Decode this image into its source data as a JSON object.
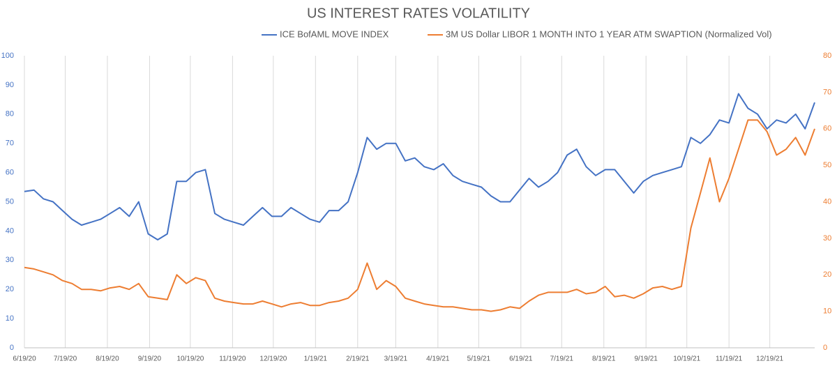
{
  "chart_data": {
    "type": "line",
    "title": "US INTEREST RATES VOLATILITY",
    "x": [
      "6/19/20",
      "6/26/20",
      "7/3/20",
      "7/10/20",
      "7/17/20",
      "7/24/20",
      "7/31/20",
      "8/7/20",
      "8/14/20",
      "8/21/20",
      "8/28/20",
      "9/4/20",
      "9/11/20",
      "9/18/20",
      "9/25/20",
      "10/2/20",
      "10/9/20",
      "10/16/20",
      "10/23/20",
      "10/30/20",
      "11/6/20",
      "11/13/20",
      "11/20/20",
      "11/27/20",
      "12/4/20",
      "12/11/20",
      "12/18/20",
      "12/25/20",
      "1/1/21",
      "1/8/21",
      "1/15/21",
      "1/22/21",
      "1/29/21",
      "2/5/21",
      "2/12/21",
      "2/19/21",
      "2/26/21",
      "3/5/21",
      "3/12/21",
      "3/19/21",
      "3/26/21",
      "4/2/21",
      "4/9/21",
      "4/16/21",
      "4/23/21",
      "4/30/21",
      "5/7/21",
      "5/14/21",
      "5/21/21",
      "5/28/21",
      "6/4/21",
      "6/11/21",
      "6/18/21",
      "6/25/21",
      "7/2/21",
      "7/9/21",
      "7/16/21",
      "7/23/21",
      "7/30/21",
      "8/6/21",
      "8/13/21",
      "8/20/21",
      "8/27/21",
      "9/3/21",
      "9/10/21",
      "9/17/21",
      "9/24/21",
      "10/1/21",
      "10/8/21",
      "10/15/21",
      "10/22/21",
      "10/29/21",
      "11/5/21",
      "11/12/21",
      "11/19/21",
      "11/26/21",
      "12/3/21",
      "12/10/21",
      "12/17/21",
      "12/24/21",
      "12/31/21",
      "1/7/22",
      "1/14/22",
      "1/21/22"
    ],
    "series": [
      {
        "name": "ICE BofAML MOVE INDEX",
        "color": "#4472c4",
        "axis": "y",
        "values": [
          53.5,
          54,
          51,
          50,
          47,
          44,
          42,
          43,
          44,
          46,
          48,
          45,
          50,
          39,
          37,
          39,
          57,
          57,
          60,
          61,
          46,
          44,
          43,
          42,
          45,
          48,
          45,
          45,
          48,
          46,
          44,
          43,
          47,
          47,
          50,
          60,
          72,
          68,
          70,
          70,
          64,
          65,
          62,
          61,
          63,
          59,
          57,
          56,
          55,
          52,
          50,
          50,
          54,
          58,
          55,
          57,
          60,
          66,
          68,
          62,
          59,
          61,
          61,
          57,
          53,
          57,
          59,
          60,
          61,
          62,
          72,
          70,
          73,
          78,
          77,
          87,
          82,
          80,
          75,
          78,
          77,
          80,
          75,
          84
        ]
      },
      {
        "name": "3M US Dollar LIBOR 1 MONTH INTO 1 YEAR ATM SWAPTION (Normalized Vol)",
        "color": "#ed7d31",
        "axis": "y2",
        "values": [
          22,
          21.6,
          20.8,
          20,
          18.4,
          17.6,
          16,
          16,
          15.6,
          16.4,
          16.8,
          16,
          17.6,
          14,
          13.6,
          13.2,
          20,
          17.6,
          19.2,
          18.4,
          13.6,
          12.8,
          12.4,
          12,
          12,
          12.8,
          12,
          11.2,
          12,
          12.4,
          11.6,
          11.6,
          12.4,
          12.8,
          13.6,
          16,
          23.2,
          16,
          18.4,
          16.8,
          13.6,
          12.8,
          12,
          11.6,
          11.2,
          11.2,
          10.8,
          10.4,
          10.4,
          10,
          10.4,
          11.2,
          10.8,
          12.8,
          14.4,
          15.2,
          15.2,
          15.2,
          16,
          14.8,
          15.2,
          16.8,
          14,
          14.4,
          13.6,
          14.8,
          16.4,
          16.8,
          16,
          16.8,
          32.8,
          42.4,
          52,
          40,
          46.4,
          54.4,
          62.4,
          62.4,
          59.2,
          52.8,
          54.4,
          57.6,
          52.8,
          60
        ]
      }
    ],
    "xlim": [
      "6/19/20",
      "1/21/22"
    ],
    "xticks": [
      "6/19/20",
      "7/19/20",
      "8/19/20",
      "9/19/20",
      "10/19/20",
      "11/19/20",
      "12/19/20",
      "1/19/21",
      "2/19/21",
      "3/19/21",
      "4/19/21",
      "5/19/21",
      "6/19/21",
      "7/19/21",
      "8/19/21",
      "9/19/21",
      "10/19/21",
      "11/19/21",
      "12/19/21"
    ],
    "ylim": [
      0,
      100
    ],
    "yticks": [
      0,
      10,
      20,
      30,
      40,
      50,
      60,
      70,
      80,
      90,
      100
    ],
    "y2lim": [
      0,
      80
    ],
    "y2ticks": [
      0,
      10,
      20,
      30,
      40,
      50,
      60,
      70,
      80
    ],
    "grid": true
  }
}
